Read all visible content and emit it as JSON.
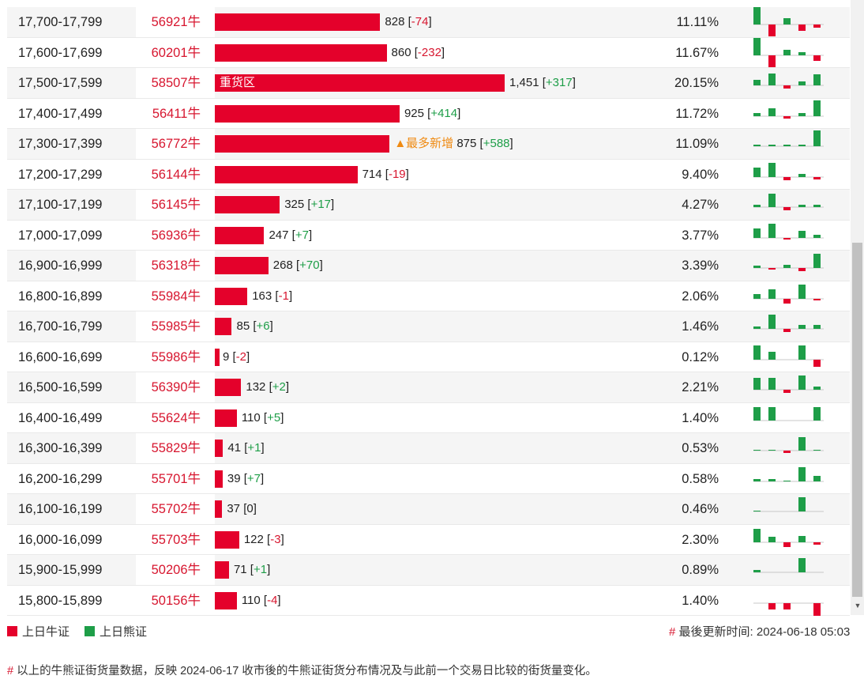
{
  "colors": {
    "bull": "#e4012b",
    "bear": "#1e9e48",
    "text_red": "#d7162f",
    "tag_orange": "#ef8a12"
  },
  "rows": [
    {
      "range": "17,700-17,799",
      "code": "56921牛",
      "value": 828,
      "value_text": "828",
      "delta": "-74",
      "pct": "11.11%",
      "tag": "",
      "spark": [
        2.5,
        -1.5,
        0.8,
        -0.8,
        -0.4
      ]
    },
    {
      "range": "17,600-17,699",
      "code": "60201牛",
      "value": 860,
      "value_text": "860",
      "delta": "-232",
      "pct": "11.67%",
      "tag": "",
      "spark": [
        2.5,
        -1.5,
        0.7,
        0.4,
        -0.7
      ]
    },
    {
      "range": "17,500-17,599",
      "code": "58507牛",
      "value": 1451,
      "value_text": "1,451",
      "delta": "+317",
      "pct": "20.15%",
      "tag": "重货区",
      "spark": [
        0.7,
        1.5,
        -0.4,
        0.5,
        1.4
      ]
    },
    {
      "range": "17,400-17,499",
      "code": "56411牛",
      "value": 925,
      "value_text": "925",
      "delta": "+414",
      "pct": "11.72%",
      "tag": "",
      "spark": [
        0.4,
        1.0,
        -0.3,
        0.4,
        2.0
      ]
    },
    {
      "range": "17,300-17,399",
      "code": "56772牛",
      "value": 875,
      "value_text": "875",
      "delta": "+588",
      "pct": "11.09%",
      "tag": "▲最多新增",
      "spark": [
        0.2,
        0.2,
        0.2,
        0.2,
        2.0
      ]
    },
    {
      "range": "17,200-17,299",
      "code": "56144牛",
      "value": 714,
      "value_text": "714",
      "delta": "-19",
      "pct": "9.40%",
      "tag": "",
      "spark": [
        1.2,
        1.8,
        -0.4,
        0.4,
        -0.3
      ]
    },
    {
      "range": "17,100-17,199",
      "code": "56145牛",
      "value": 325,
      "value_text": "325",
      "delta": "+17",
      "pct": "4.27%",
      "tag": "",
      "spark": [
        0.3,
        1.7,
        -0.4,
        0.3,
        0.3
      ]
    },
    {
      "range": "17,000-17,099",
      "code": "56936牛",
      "value": 247,
      "value_text": "247",
      "delta": "+7",
      "pct": "3.77%",
      "tag": "",
      "spark": [
        1.2,
        1.8,
        -0.2,
        0.9,
        0.4
      ]
    },
    {
      "range": "16,900-16,999",
      "code": "56318牛",
      "value": 268,
      "value_text": "268",
      "delta": "+70",
      "pct": "3.39%",
      "tag": "",
      "spark": [
        0.3,
        -0.2,
        0.4,
        -0.4,
        1.8
      ]
    },
    {
      "range": "16,800-16,899",
      "code": "55984牛",
      "value": 163,
      "value_text": "163",
      "delta": "-1",
      "pct": "2.06%",
      "tag": "",
      "spark": [
        0.6,
        1.2,
        -0.6,
        1.8,
        -0.2
      ]
    },
    {
      "range": "16,700-16,799",
      "code": "55985牛",
      "value": 85,
      "value_text": "85",
      "delta": "+6",
      "pct": "1.46%",
      "tag": "",
      "spark": [
        0.3,
        1.8,
        -0.4,
        0.5,
        0.5
      ]
    },
    {
      "range": "16,600-16,699",
      "code": "55986牛",
      "value": 9,
      "value_text": "9",
      "delta": "-2",
      "pct": "0.12%",
      "tag": "",
      "spark": [
        1.8,
        1.0,
        0,
        1.8,
        -0.9
      ]
    },
    {
      "range": "16,500-16,599",
      "code": "56390牛",
      "value": 132,
      "value_text": "132",
      "delta": "+2",
      "pct": "2.21%",
      "tag": "",
      "spark": [
        1.5,
        1.5,
        -0.4,
        1.8,
        0.4
      ]
    },
    {
      "range": "16,400-16,499",
      "code": "55624牛",
      "value": 110,
      "value_text": "110",
      "delta": "+5",
      "pct": "1.40%",
      "tag": "",
      "spark": [
        1.7,
        1.7,
        0,
        0,
        1.7
      ]
    },
    {
      "range": "16,300-16,399",
      "code": "55829牛",
      "value": 41,
      "value_text": "41",
      "delta": "+1",
      "pct": "0.53%",
      "tag": "",
      "spark": [
        0.1,
        0.1,
        -0.3,
        1.7,
        0.1
      ]
    },
    {
      "range": "16,200-16,299",
      "code": "55701牛",
      "value": 39,
      "value_text": "39",
      "delta": "+7",
      "pct": "0.58%",
      "tag": "",
      "spark": [
        0.3,
        0.3,
        0.1,
        1.8,
        0.7
      ]
    },
    {
      "range": "16,100-16,199",
      "code": "55702牛",
      "value": 37,
      "value_text": "37",
      "delta": "0",
      "pct": "0.46%",
      "tag": "",
      "spark": [
        0.1,
        0,
        0,
        1.8,
        0
      ]
    },
    {
      "range": "16,000-16,099",
      "code": "55703牛",
      "value": 122,
      "value_text": "122",
      "delta": "-3",
      "pct": "2.30%",
      "tag": "",
      "spark": [
        1.7,
        0.7,
        -0.6,
        0.8,
        -0.3
      ]
    },
    {
      "range": "15,900-15,999",
      "code": "50206牛",
      "value": 71,
      "value_text": "71",
      "delta": "+1",
      "pct": "0.89%",
      "tag": "",
      "spark": [
        0.3,
        0,
        0,
        1.8,
        0
      ]
    },
    {
      "range": "15,800-15,899",
      "code": "50156牛",
      "value": 110,
      "value_text": "110",
      "delta": "-4",
      "pct": "1.40%",
      "tag": "",
      "spark": [
        0,
        -0.8,
        -0.8,
        0,
        -1.8
      ]
    }
  ],
  "legend": {
    "bull_label": "上日牛证",
    "bear_label": "上日熊证",
    "update_label": "最後更新时间: 2024-06-18 05:03"
  },
  "note": "以上的牛熊证街货量数据，反映 2024-06-17 收市後的牛熊证街货分布情况及与此前一个交易日比较的街货量变化。"
}
